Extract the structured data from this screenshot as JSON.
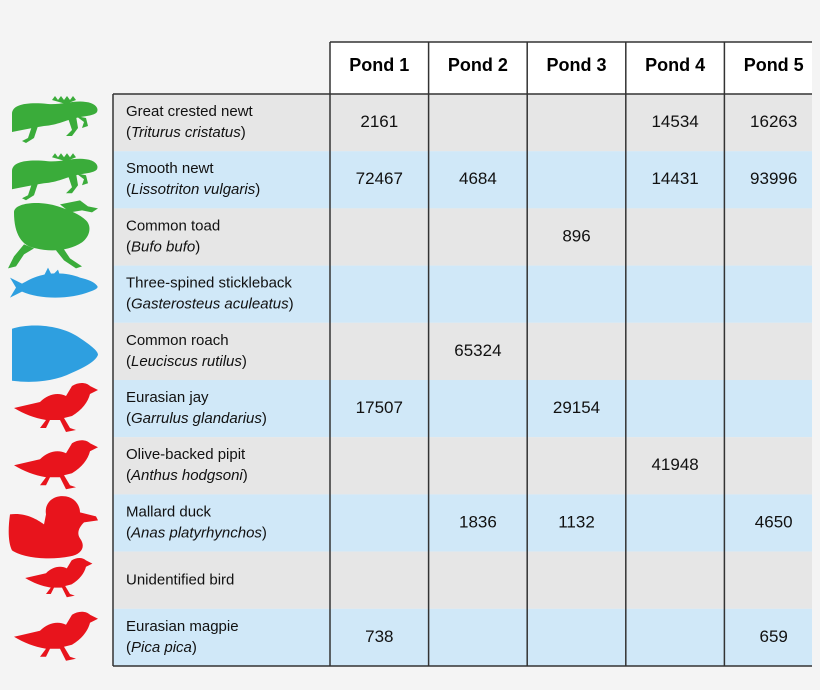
{
  "chart_data": {
    "type": "table",
    "columns": [
      "Pond 1",
      "Pond 2",
      "Pond 3",
      "Pond 4",
      "Pond 5"
    ],
    "rows": [
      {
        "common": "Great crested newt",
        "latin": "Triturus cristatus",
        "group": "amphibian",
        "icon": "newt-icon",
        "values": [
          2161,
          null,
          null,
          14534,
          16263
        ]
      },
      {
        "common": "Smooth newt",
        "latin": "Lissotriton vulgaris",
        "group": "amphibian",
        "icon": "newt-icon",
        "values": [
          72467,
          4684,
          null,
          14431,
          93996
        ]
      },
      {
        "common": "Common toad",
        "latin": "Bufo bufo",
        "group": "amphibian",
        "icon": "toad-icon",
        "values": [
          null,
          null,
          896,
          null,
          null
        ]
      },
      {
        "common": "Three-spined stickleback",
        "latin": "Gasterosteus aculeatus",
        "group": "fish",
        "icon": "fish-icon",
        "values": [
          null,
          null,
          null,
          null,
          null
        ]
      },
      {
        "common": "Common roach",
        "latin": "Leuciscus rutilus",
        "group": "fish",
        "icon": "fish-icon",
        "values": [
          null,
          65324,
          null,
          null,
          null
        ]
      },
      {
        "common": "Eurasian jay",
        "latin": "Garrulus glandarius",
        "group": "bird",
        "icon": "bird-icon",
        "values": [
          17507,
          null,
          29154,
          null,
          null
        ]
      },
      {
        "common": "Olive-backed pipit",
        "latin": "Anthus hodgsoni",
        "group": "bird",
        "icon": "bird-icon",
        "values": [
          null,
          null,
          null,
          41948,
          null
        ]
      },
      {
        "common": "Mallard duck",
        "latin": "Anas platyrhynchos",
        "group": "bird",
        "icon": "duck-icon",
        "values": [
          null,
          1836,
          1132,
          null,
          4650
        ]
      },
      {
        "common": "Unidentified bird",
        "latin": "",
        "group": "bird",
        "icon": "bird-icon",
        "values": [
          null,
          null,
          null,
          null,
          null
        ]
      },
      {
        "common": "Eurasian magpie",
        "latin": "Pica pica",
        "group": "bird",
        "icon": "bird-icon",
        "values": [
          738,
          null,
          null,
          null,
          659
        ]
      }
    ],
    "group_colors": {
      "amphibian": "#3aac3a",
      "fish": "#2e9fe0",
      "bird": "#e8141c"
    },
    "row_colors": [
      "#e6e6e6",
      "#d0e8f8"
    ]
  }
}
